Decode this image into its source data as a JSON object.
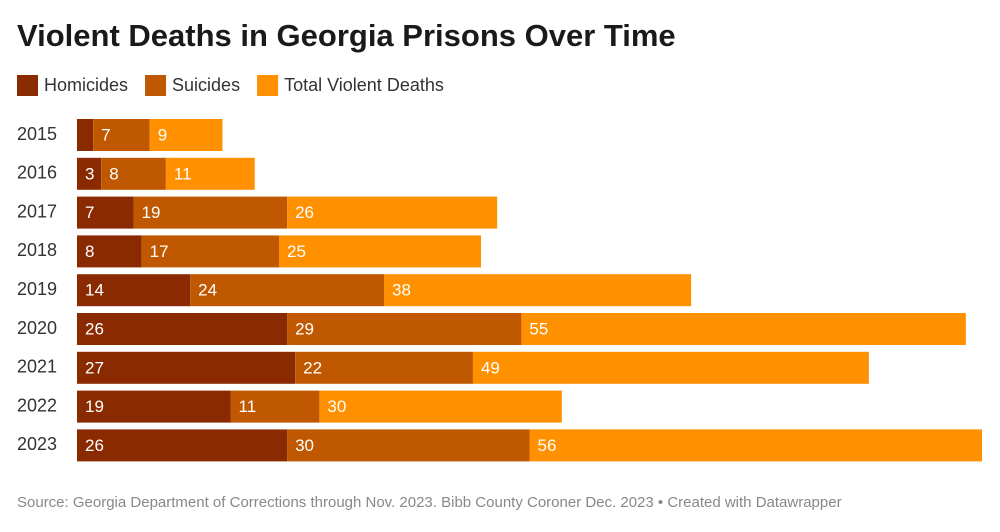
{
  "chart_data": {
    "type": "stacked_bar_horizontal",
    "title": "Violent Deaths in Georgia Prisons Over Time",
    "categories": [
      "2015",
      "2016",
      "2017",
      "2018",
      "2019",
      "2020",
      "2021",
      "2022",
      "2023"
    ],
    "series": [
      {
        "name": "Homicides",
        "color": "#8a2a00",
        "values": [
          2,
          3,
          7,
          8,
          14,
          26,
          27,
          19,
          26
        ]
      },
      {
        "name": "Suicides",
        "color": "#bf5800",
        "values": [
          7,
          8,
          19,
          17,
          24,
          29,
          22,
          11,
          30
        ]
      },
      {
        "name": "Total Violent Deaths",
        "color": "#ff9000",
        "values": [
          9,
          11,
          26,
          25,
          38,
          55,
          49,
          30,
          56
        ]
      }
    ],
    "source": "Source: Georgia Department of Corrections through Nov. 2023. Bibb County Coroner Dec. 2023 • Created with Datawrapper"
  }
}
